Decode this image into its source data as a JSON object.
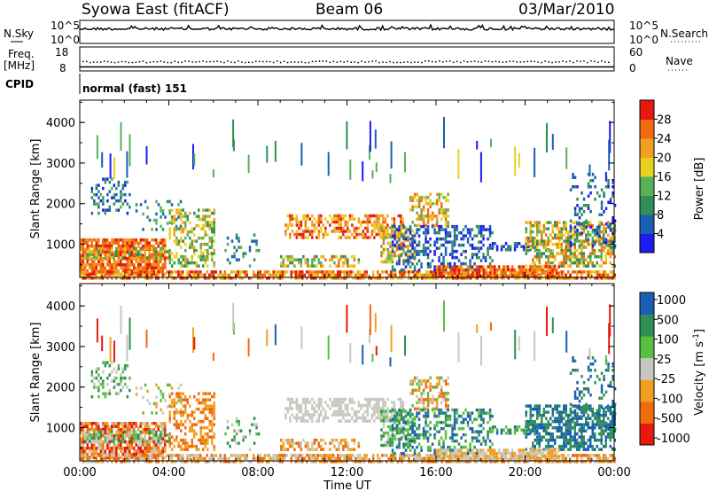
{
  "header": {
    "station": "Syowa East (fitACF)",
    "beam": "Beam 06",
    "date": "03/Mar/2010"
  },
  "left_labels": {
    "nsky": "N.Sky",
    "freq_line1": "Freq.",
    "freq_line2": "[MHz]",
    "cpid": "CPID"
  },
  "right_labels": {
    "nsearch": "N.Search",
    "nave": "Nave"
  },
  "noise_axis": {
    "left_ticks": [
      "10^5",
      "10^0"
    ],
    "right_ticks": [
      "10^5",
      "10^0"
    ]
  },
  "freq_axis": {
    "left_ticks": [
      "18",
      "8"
    ],
    "right_ticks": [
      "60",
      "0"
    ]
  },
  "cpid_text": "normal (fast) 151",
  "colors": {
    "power": [
      "#1c1cf0",
      "#1a5fb4",
      "#2f8f56",
      "#58b058",
      "#e8d020",
      "#f2a020",
      "#f06a10",
      "#e81a10"
    ],
    "velocity": [
      "#e81a10",
      "#f06a10",
      "#f2a020",
      "#c8c8c0",
      "#58c040",
      "#2f8f56",
      "#1a5fb4"
    ]
  },
  "chart_data": [
    {
      "type": "heatmap",
      "ylabel": "Slant Range [km]",
      "y_ticks": [
        "1000",
        "2000",
        "3000",
        "4000"
      ],
      "ylim": [
        180,
        4550
      ],
      "x_ticks": [
        "00:00",
        "04:00",
        "08:00",
        "12:00",
        "16:00",
        "20:00",
        "00:00"
      ],
      "colorbar": {
        "label": "Power [dB]",
        "ticks": [
          "4",
          "8",
          "12",
          "16",
          "20",
          "24",
          "28"
        ],
        "range": [
          0,
          32
        ]
      }
    },
    {
      "type": "heatmap",
      "ylabel": "Slant Range [km]",
      "y_ticks": [
        "1000",
        "2000",
        "3000",
        "4000"
      ],
      "ylim": [
        180,
        4550
      ],
      "x_ticks": [
        "00:00",
        "04:00",
        "08:00",
        "12:00",
        "16:00",
        "20:00",
        "00:00"
      ],
      "xlabel": "Time UT",
      "colorbar": {
        "label": "Velocity [m s^-1]",
        "ticks": [
          "1000",
          "500",
          "100",
          "25",
          "-25",
          "-100",
          "-500",
          "-1000"
        ]
      }
    }
  ]
}
